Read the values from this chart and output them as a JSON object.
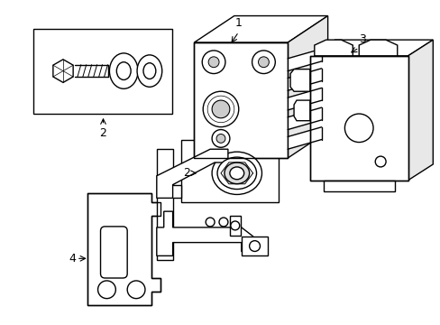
{
  "bg_color": "#ffffff",
  "line_color": "#000000",
  "line_width": 1.0,
  "fig_width": 4.89,
  "fig_height": 3.6,
  "dpi": 100
}
